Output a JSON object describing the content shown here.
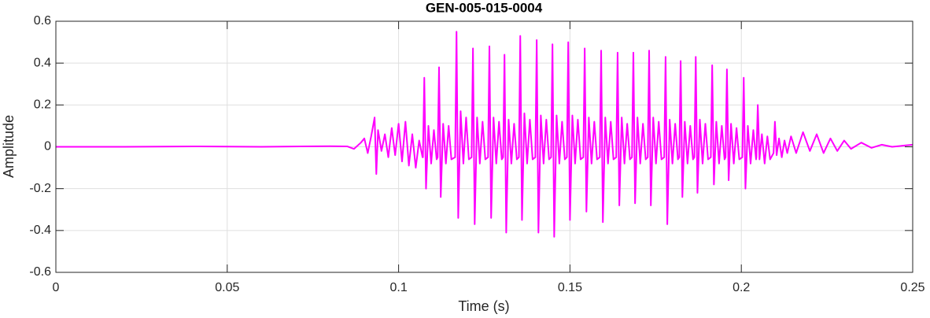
{
  "chart_data": {
    "type": "line",
    "title": "GEN-005-015-0004",
    "xlabel": "Time (s)",
    "ylabel": "Amplitude",
    "xlim": [
      0,
      0.25
    ],
    "ylim": [
      -0.6,
      0.6
    ],
    "xticks": [
      0,
      0.05,
      0.1,
      0.15,
      0.2,
      0.25
    ],
    "yticks": [
      -0.6,
      -0.4,
      -0.2,
      0,
      0.2,
      0.4,
      0.6
    ],
    "grid": true,
    "x": [
      0,
      0.02,
      0.04,
      0.06,
      0.08,
      0.085,
      0.087,
      0.089,
      0.09,
      0.091,
      0.092,
      0.093,
      0.0935,
      0.094,
      0.095,
      0.096,
      0.097,
      0.098,
      0.099,
      0.1,
      0.101,
      0.102,
      0.103,
      0.104,
      0.105,
      0.106,
      0.107,
      0.1071,
      0.1075,
      0.108,
      0.1087,
      0.1095,
      0.1103,
      0.1111,
      0.1114,
      0.1118,
      0.1123,
      0.113,
      0.1138,
      0.1146,
      0.1154,
      0.1165,
      0.1169,
      0.1174,
      0.1181,
      0.1189,
      0.1197,
      0.1205,
      0.1213,
      0.1217,
      0.1222,
      0.1229,
      0.1237,
      0.1245,
      0.1253,
      0.1261,
      0.1265,
      0.127,
      0.1277,
      0.1285,
      0.1293,
      0.1301,
      0.1305,
      0.1309,
      0.1314,
      0.1321,
      0.1329,
      0.1337,
      0.1345,
      0.1351,
      0.1355,
      0.136,
      0.1367,
      0.1375,
      0.1383,
      0.1391,
      0.1399,
      0.1403,
      0.1408,
      0.1415,
      0.1423,
      0.1431,
      0.1439,
      0.1445,
      0.1449,
      0.1454,
      0.1461,
      0.1469,
      0.1477,
      0.1485,
      0.1491,
      0.1495,
      0.15,
      0.1507,
      0.1515,
      0.1523,
      0.1531,
      0.1539,
      0.1543,
      0.1548,
      0.1555,
      0.1563,
      0.1571,
      0.1579,
      0.1587,
      0.1591,
      0.1596,
      0.1603,
      0.1611,
      0.1619,
      0.1627,
      0.1635,
      0.1639,
      0.1644,
      0.1651,
      0.1659,
      0.1667,
      0.1675,
      0.1681,
      0.1685,
      0.169,
      0.1697,
      0.1705,
      0.1713,
      0.1721,
      0.1727,
      0.1731,
      0.1736,
      0.1743,
      0.1751,
      0.1759,
      0.1767,
      0.1775,
      0.1779,
      0.1784,
      0.1791,
      0.1799,
      0.1807,
      0.1815,
      0.1819,
      0.1823,
      0.1828,
      0.1835,
      0.1843,
      0.1851,
      0.1859,
      0.1863,
      0.1867,
      0.1872,
      0.1879,
      0.1887,
      0.1895,
      0.1903,
      0.1911,
      0.1915,
      0.192,
      0.1927,
      0.1935,
      0.1943,
      0.1951,
      0.1954,
      0.1958,
      0.1963,
      0.197,
      0.1978,
      0.1986,
      0.1994,
      0.2003,
      0.2007,
      0.2012,
      0.2019,
      0.2027,
      0.2035,
      0.2043,
      0.2044,
      0.2048,
      0.2053,
      0.206,
      0.2068,
      0.2076,
      0.2084,
      0.2094,
      0.2098,
      0.2103,
      0.211,
      0.2118,
      0.2126,
      0.2134,
      0.2145,
      0.216,
      0.218,
      0.22,
      0.222,
      0.224,
      0.226,
      0.228,
      0.23,
      0.232,
      0.235,
      0.238,
      0.241,
      0.244,
      0.247,
      0.25
    ],
    "series": [
      {
        "color": "#ff00ff",
        "values": [
          0,
          0,
          0.002,
          0,
          0.003,
          0.002,
          -0.01,
          0.02,
          0.04,
          -0.03,
          0.05,
          0.14,
          -0.13,
          0.08,
          -0.02,
          0.06,
          -0.05,
          0.09,
          -0.04,
          0.11,
          -0.07,
          0.12,
          -0.09,
          0.06,
          -0.1,
          0.03,
          -0.05,
          -0.05,
          0.33,
          -0.2,
          0.1,
          -0.08,
          0.08,
          -0.06,
          -0.05,
          0.38,
          -0.24,
          0.11,
          -0.08,
          0.1,
          -0.06,
          -0.05,
          0.55,
          -0.34,
          0.17,
          -0.08,
          0.14,
          -0.06,
          -0.05,
          0.47,
          -0.37,
          0.14,
          -0.08,
          0.12,
          -0.06,
          -0.05,
          0.48,
          -0.34,
          0.14,
          -0.08,
          0.12,
          -0.06,
          -0.05,
          0.44,
          -0.41,
          0.13,
          -0.08,
          0.11,
          -0.06,
          -0.05,
          0.53,
          -0.35,
          0.16,
          -0.08,
          0.13,
          -0.06,
          -0.05,
          0.51,
          -0.41,
          0.15,
          -0.08,
          0.13,
          -0.06,
          -0.05,
          0.49,
          -0.43,
          0.15,
          -0.08,
          0.12,
          -0.06,
          -0.05,
          0.5,
          -0.35,
          0.15,
          -0.08,
          0.13,
          -0.06,
          -0.05,
          0.47,
          -0.31,
          0.14,
          -0.08,
          0.12,
          -0.06,
          -0.05,
          0.46,
          -0.36,
          0.14,
          -0.08,
          0.12,
          -0.06,
          -0.05,
          0.45,
          -0.28,
          0.14,
          -0.08,
          0.11,
          -0.06,
          -0.05,
          0.45,
          -0.27,
          0.14,
          -0.08,
          0.11,
          -0.06,
          -0.05,
          0.46,
          -0.28,
          0.14,
          -0.08,
          0.12,
          -0.06,
          -0.05,
          0.43,
          -0.37,
          0.13,
          -0.08,
          0.11,
          -0.06,
          -0.05,
          0.41,
          -0.24,
          0.12,
          -0.08,
          0.1,
          -0.06,
          -0.05,
          0.43,
          -0.22,
          0.13,
          -0.08,
          0.11,
          -0.06,
          -0.05,
          0.39,
          -0.18,
          0.12,
          -0.08,
          0.1,
          -0.06,
          -0.05,
          0.37,
          -0.16,
          0.11,
          -0.08,
          0.09,
          -0.06,
          -0.05,
          0.33,
          -0.2,
          0.1,
          -0.08,
          0.08,
          -0.06,
          -0.05,
          0.2,
          -0.06,
          0.06,
          -0.08,
          0.05,
          -0.06,
          -0.03,
          0.12,
          -0.04,
          0.04,
          -0.05,
          0.03,
          -0.03,
          0.05,
          -0.03,
          0.07,
          -0.02,
          0.06,
          -0.03,
          0.04,
          -0.02,
          0.03,
          -0.01,
          0.02,
          -0.005,
          0.01,
          0,
          0.005,
          0.01
        ]
      }
    ]
  }
}
